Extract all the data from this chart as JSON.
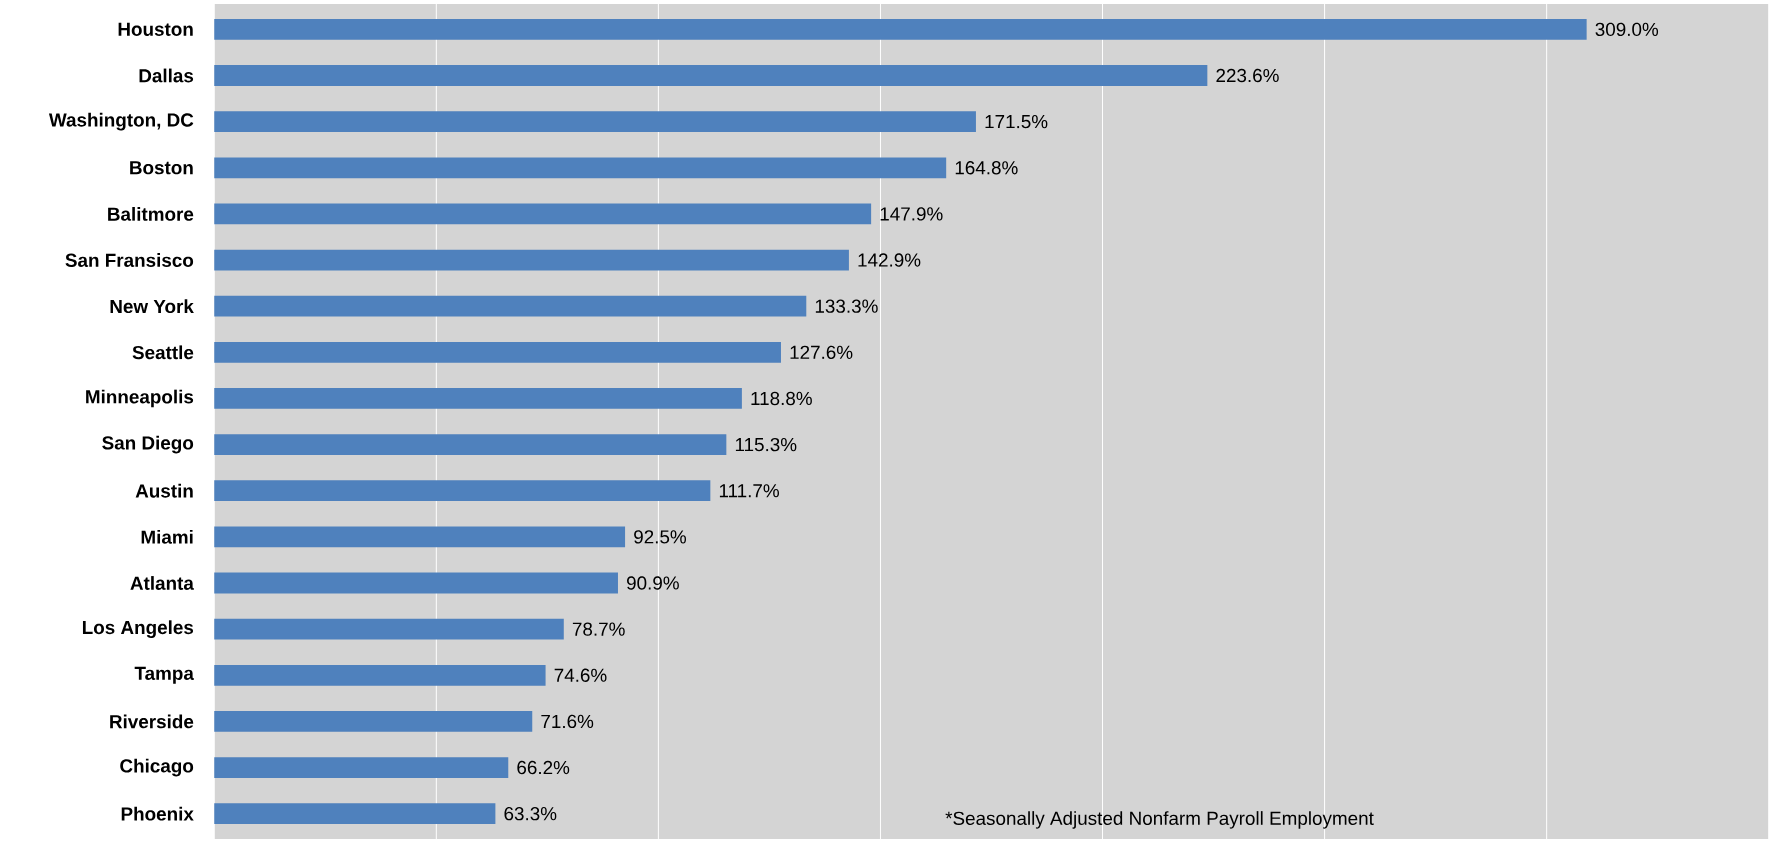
{
  "chart_data": {
    "type": "bar",
    "orientation": "horizontal",
    "categories": [
      "Houston",
      "Dallas",
      "Washington, DC",
      "Boston",
      "Balitmore",
      "San Fransisco",
      "New York",
      "Seattle",
      "Minneapolis",
      "San Diego",
      "Austin",
      "Miami",
      "Atlanta",
      "Los Angeles",
      "Tampa",
      "Riverside",
      "Chicago",
      "Phoenix"
    ],
    "values": [
      309.0,
      223.6,
      171.5,
      164.8,
      147.9,
      142.9,
      133.3,
      127.6,
      118.8,
      115.3,
      111.7,
      92.5,
      90.9,
      78.7,
      74.6,
      71.6,
      66.2,
      63.3
    ],
    "value_labels": [
      "309.0%",
      "223.6%",
      "171.5%",
      "164.8%",
      "147.9%",
      "142.9%",
      "133.3%",
      "127.6%",
      "118.8%",
      "115.3%",
      "111.7%",
      "92.5%",
      "90.9%",
      "78.7%",
      "74.6%",
      "71.6%",
      "66.2%",
      "63.3%"
    ],
    "color": "#4f81bd",
    "xlim": [
      0,
      350
    ],
    "xticks": [
      {
        "value": 0,
        "label": null
      },
      {
        "value": 50,
        "label": null
      },
      {
        "value": 100,
        "label": null
      },
      {
        "value": 150,
        "label": null
      },
      {
        "value": 200,
        "label": null
      },
      {
        "value": 250,
        "label": null
      },
      {
        "value": 300,
        "label": null
      },
      {
        "value": 350,
        "label": null
      }
    ],
    "tick_labels": "y",
    "grid": "x",
    "annotations": [
      "*Seasonally Adjusted Nonfarm Payroll Employment"
    ]
  }
}
